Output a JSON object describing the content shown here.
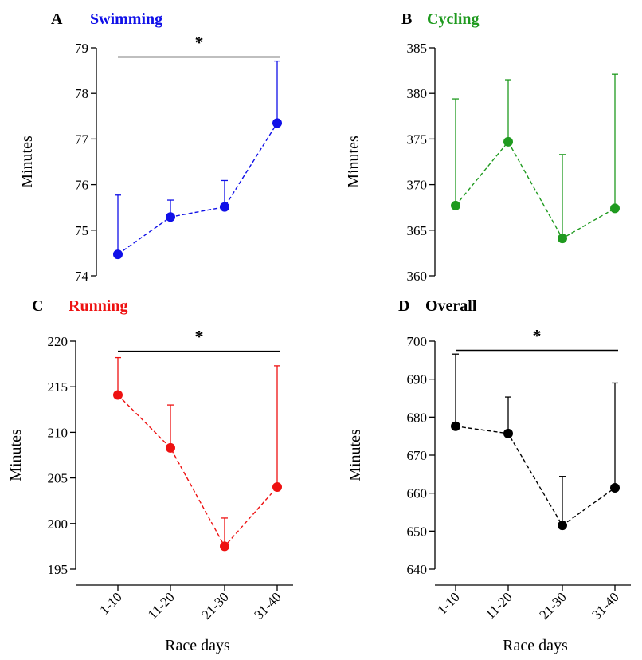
{
  "figure": {
    "xlabel": "Race days",
    "categories": [
      "1-10",
      "11-20",
      "21-30",
      "31-40"
    ]
  },
  "chart_data": [
    {
      "type": "line",
      "panel": "A",
      "title": "Swimming",
      "color": "#1010e8",
      "ylabel": "Minutes",
      "xlabel": "",
      "ylim": [
        74,
        79
      ],
      "yticks": [
        74,
        75,
        76,
        77,
        78,
        79
      ],
      "categories": [
        "1-10",
        "11-20",
        "21-30",
        "31-40"
      ],
      "values": [
        74.47,
        75.29,
        75.51,
        77.35
      ],
      "error_upper": [
        75.77,
        75.66,
        76.09,
        78.71
      ],
      "significance": {
        "from": 0,
        "to": 3,
        "y": 78.8,
        "label": "*"
      }
    },
    {
      "type": "line",
      "panel": "B",
      "title": "Cycling",
      "color": "#1f9a1f",
      "ylabel": "Minutes",
      "xlabel": "",
      "ylim": [
        360,
        385
      ],
      "yticks": [
        360,
        365,
        370,
        375,
        380,
        385
      ],
      "categories": [
        "1-10",
        "11-20",
        "21-30",
        "31-40"
      ],
      "values": [
        367.7,
        374.7,
        364.1,
        367.4
      ],
      "error_upper": [
        379.4,
        381.5,
        373.3,
        382.1
      ]
    },
    {
      "type": "line",
      "panel": "C",
      "title": "Running",
      "color": "#ee1111",
      "ylabel": "Minutes",
      "xlabel": "",
      "ylim": [
        195,
        220
      ],
      "yticks": [
        195,
        200,
        205,
        210,
        215,
        220
      ],
      "categories": [
        "1-10",
        "11-20",
        "21-30",
        "31-40"
      ],
      "values": [
        214.1,
        208.3,
        197.5,
        204.0
      ],
      "error_upper": [
        218.2,
        213.0,
        200.6,
        217.3
      ],
      "significance": {
        "from": 0,
        "to": 3,
        "y": 218.9,
        "label": "*"
      }
    },
    {
      "type": "line",
      "panel": "D",
      "title": "Overall",
      "color": "#000000",
      "ylabel": "Minutes",
      "xlabel": "Race days",
      "ylim": [
        640,
        700
      ],
      "yticks": [
        640,
        650,
        660,
        670,
        680,
        690,
        700
      ],
      "categories": [
        "1-10",
        "11-20",
        "21-30",
        "31-40"
      ],
      "values": [
        677.6,
        675.7,
        651.5,
        661.4
      ],
      "error_upper": [
        696.6,
        685.3,
        664.4,
        689.0
      ],
      "significance": {
        "from": 0,
        "to": 3,
        "y": 697.6,
        "label": "*"
      }
    }
  ]
}
